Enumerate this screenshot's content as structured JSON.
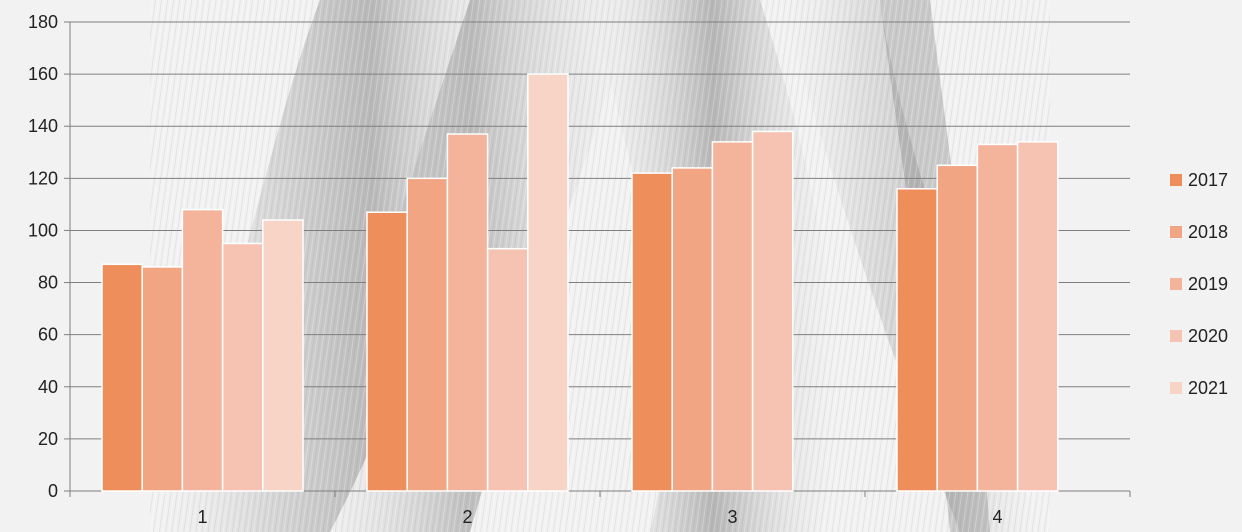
{
  "chart_data": {
    "type": "bar",
    "categories": [
      "1",
      "2",
      "3",
      "4"
    ],
    "series": [
      {
        "name": "2017",
        "color": "#ED8E5B",
        "values": [
          87,
          107,
          122,
          116
        ]
      },
      {
        "name": "2018",
        "color": "#F1A583",
        "values": [
          86,
          120,
          124,
          125
        ]
      },
      {
        "name": "2019",
        "color": "#F4B39B",
        "values": [
          108,
          137,
          134,
          133
        ]
      },
      {
        "name": "2020",
        "color": "#F6C3B2",
        "values": [
          95,
          93,
          138,
          134
        ]
      },
      {
        "name": "2021",
        "color": "#F8D4C7",
        "values": [
          104,
          160,
          null,
          null
        ]
      }
    ],
    "title": "",
    "xlabel": "",
    "ylabel": "",
    "ylim": [
      0,
      180
    ],
    "yticks": [
      0,
      20,
      40,
      60,
      80,
      100,
      120,
      140,
      160,
      180
    ],
    "grid": true,
    "legend_position": "right",
    "background": "grey feather-like photographic texture behind plot"
  }
}
